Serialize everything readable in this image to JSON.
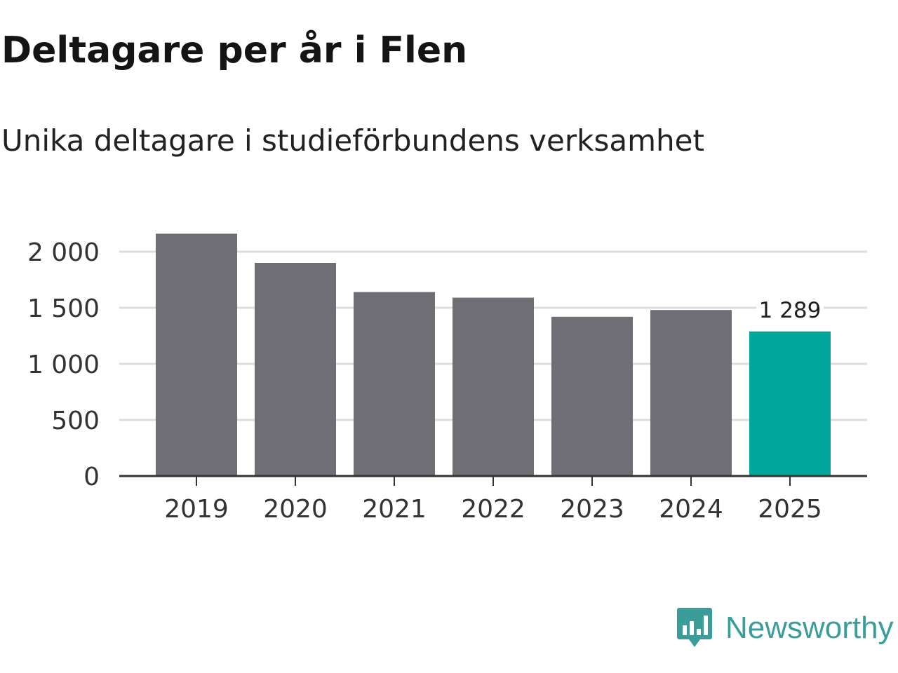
{
  "header": {
    "title": "Deltagare per år i Flen",
    "subtitle": "Unika deltagare i studieförbundens verksamhet"
  },
  "branding": {
    "name": "Newsworthy",
    "logo_icon": "bar-chart-speech-bubble-icon",
    "color": "#3a9d99"
  },
  "chart_data": {
    "type": "bar",
    "categories": [
      "2019",
      "2020",
      "2021",
      "2022",
      "2023",
      "2024",
      "2025"
    ],
    "values": [
      2160,
      1900,
      1640,
      1590,
      1420,
      1480,
      1289
    ],
    "ylim": [
      0,
      2000
    ],
    "yticks": [
      0,
      500,
      1000,
      1500,
      2000
    ],
    "ytick_labels": [
      "0",
      "500",
      "1 000",
      "1 500",
      "2 000"
    ],
    "grid": true,
    "bar_color": "#6f6e74",
    "highlight_color": "#00a59b",
    "highlight_index": 6,
    "data_labels": [
      {
        "index": 6,
        "text": "1 289"
      }
    ]
  }
}
